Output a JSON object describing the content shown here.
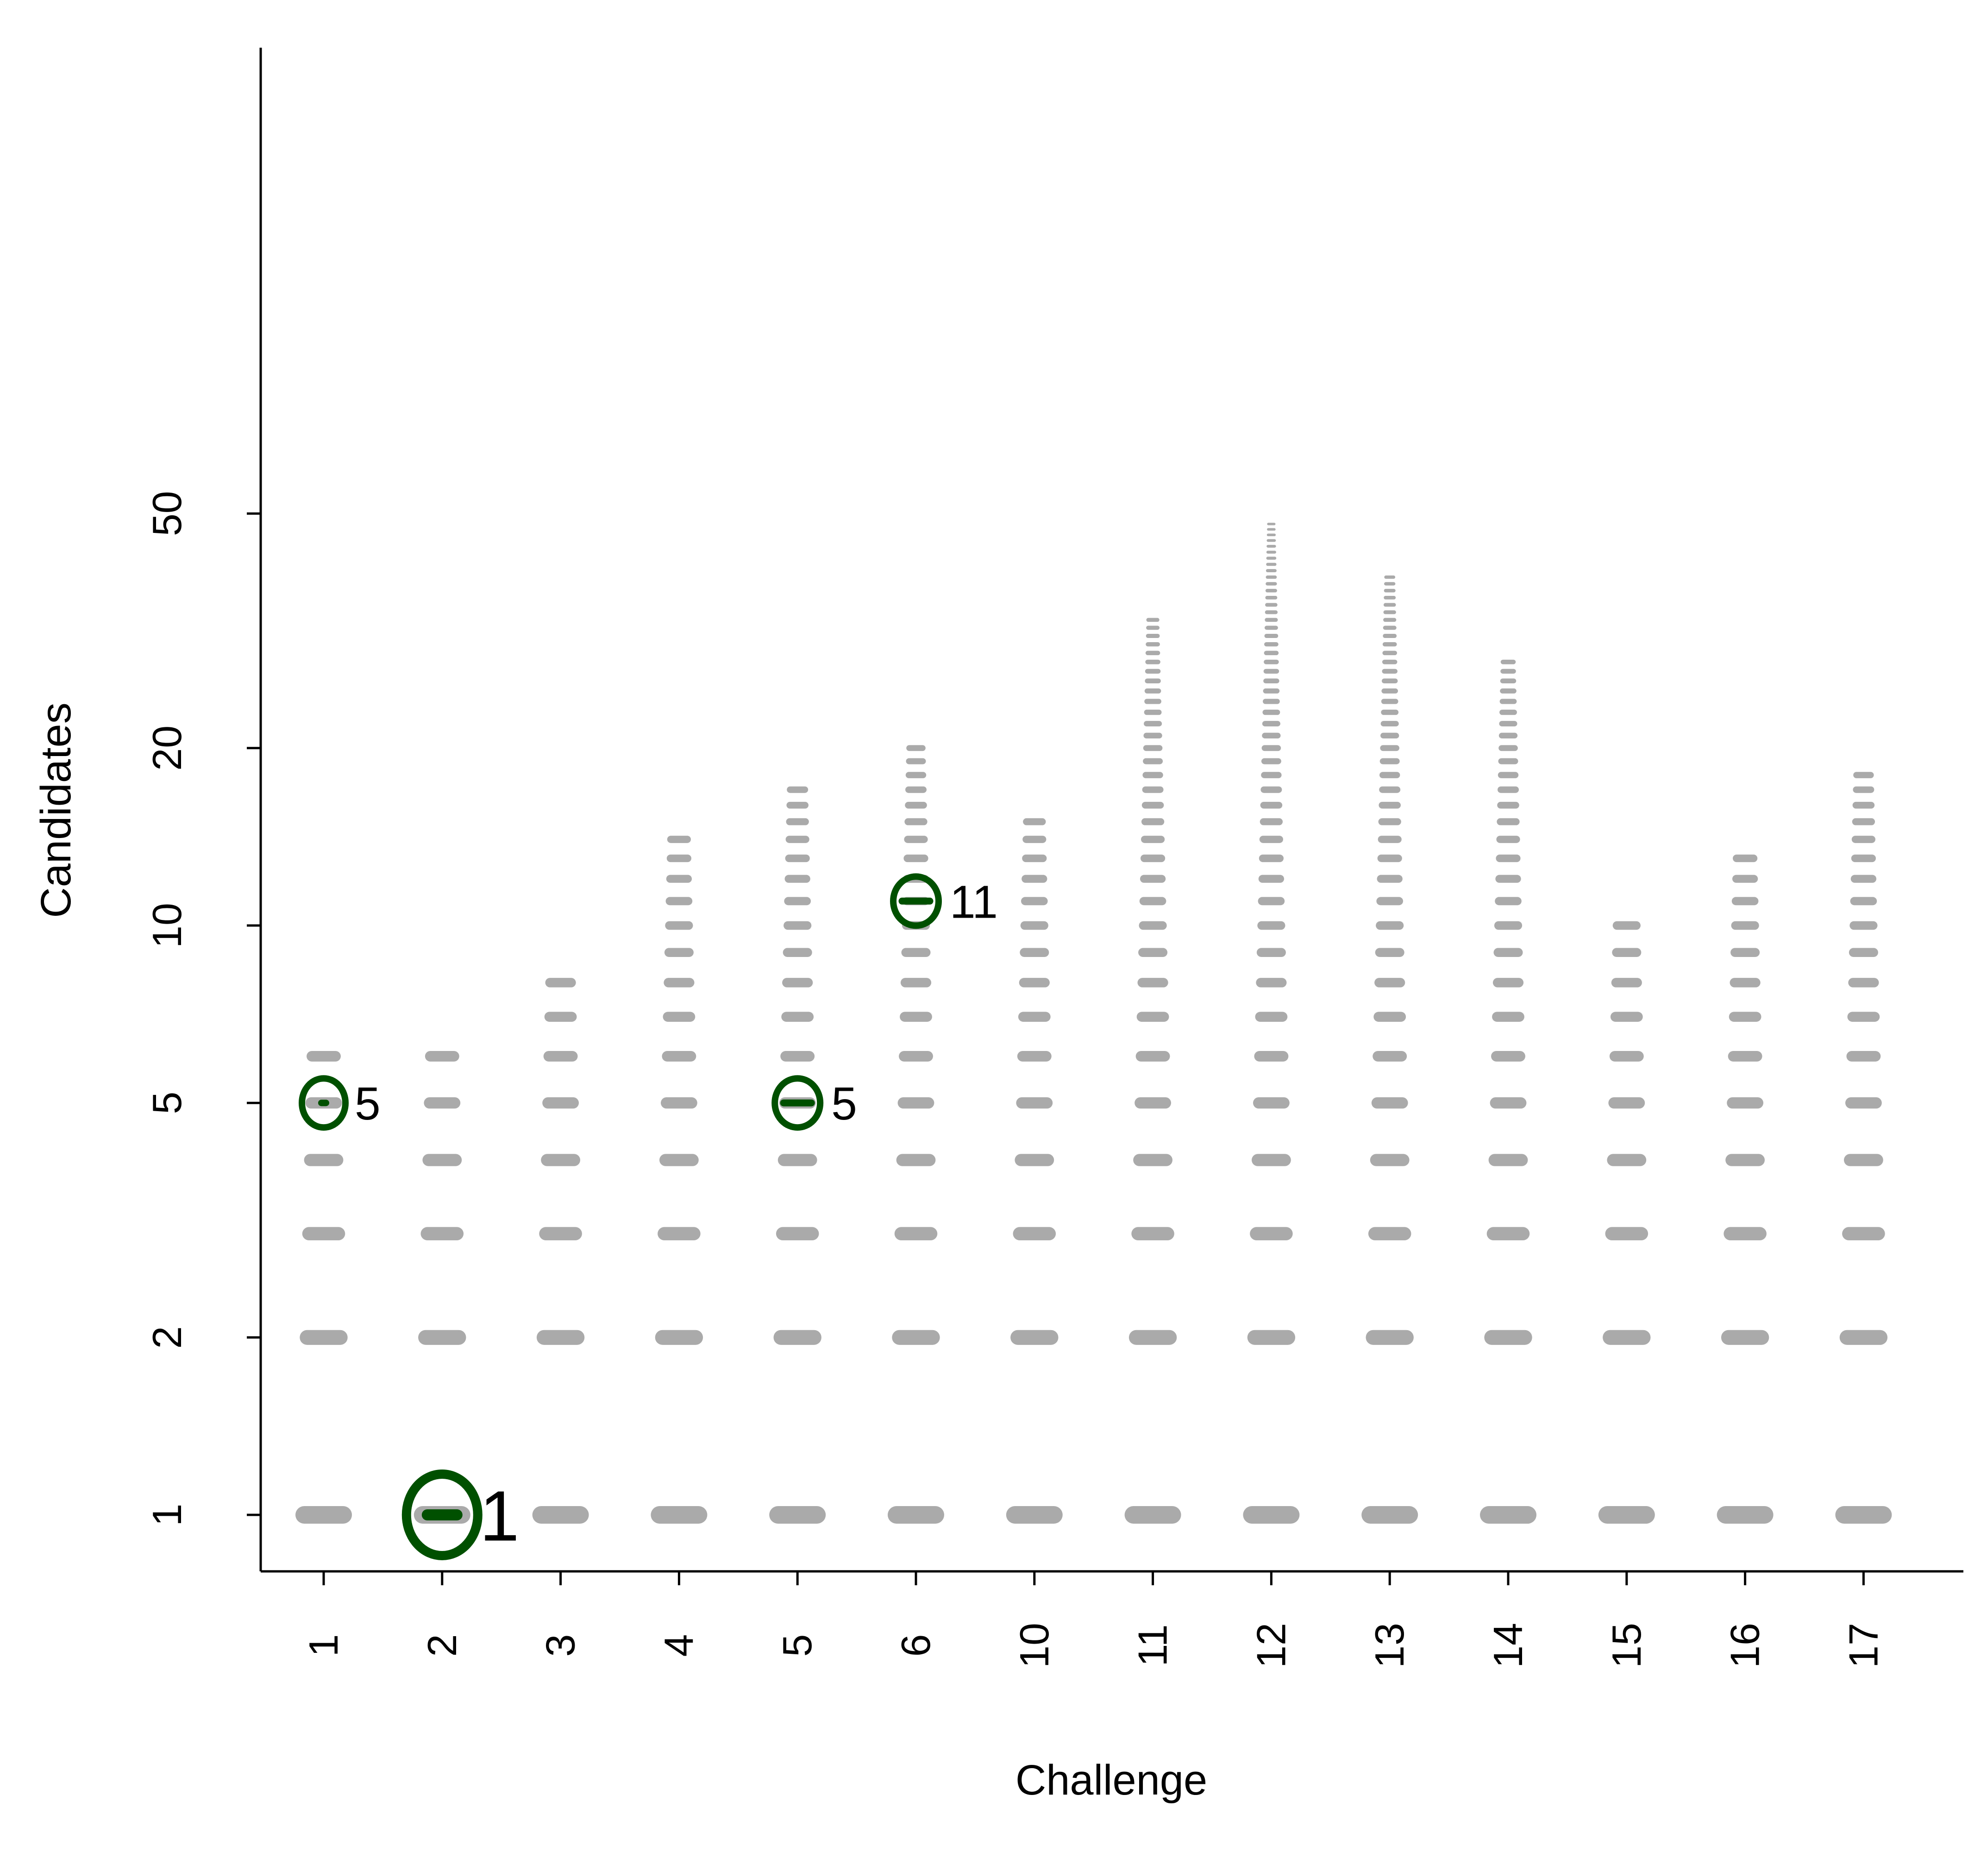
{
  "chart_data": {
    "type": "scatter",
    "title": "",
    "xlabel": "Challenge",
    "ylabel": "Candidates",
    "yscale": "log",
    "ylim": [
      0.8,
      57
    ],
    "grid": false,
    "legend": "none",
    "colors": {
      "dash": "#aaaaaa",
      "highlight": "#005000",
      "axis": "#000000"
    },
    "categories": [
      "1",
      "2",
      "3",
      "4",
      "5",
      "6",
      "10",
      "11",
      "12",
      "13",
      "14",
      "15",
      "16",
      "17"
    ],
    "y_ticks": [
      {
        "value": 1,
        "label": "1"
      },
      {
        "value": 2,
        "label": "2"
      },
      {
        "value": 5,
        "label": "5"
      },
      {
        "value": 10,
        "label": "10"
      },
      {
        "value": 20,
        "label": "20"
      },
      {
        "value": 50,
        "label": "50"
      }
    ],
    "max_candidates": [
      6,
      6,
      8,
      14,
      17,
      20,
      15,
      33,
      48,
      39,
      28,
      10,
      13,
      18
    ],
    "highlights": [
      {
        "challenge": "1",
        "rank": 5,
        "label": "5",
        "size": "small"
      },
      {
        "challenge": "2",
        "rank": 1,
        "label": "1",
        "size": "large"
      },
      {
        "challenge": "5",
        "rank": 5,
        "label": "5",
        "size": "medium"
      },
      {
        "challenge": "6",
        "rank": 11,
        "label": "11",
        "size": "medium"
      }
    ]
  }
}
